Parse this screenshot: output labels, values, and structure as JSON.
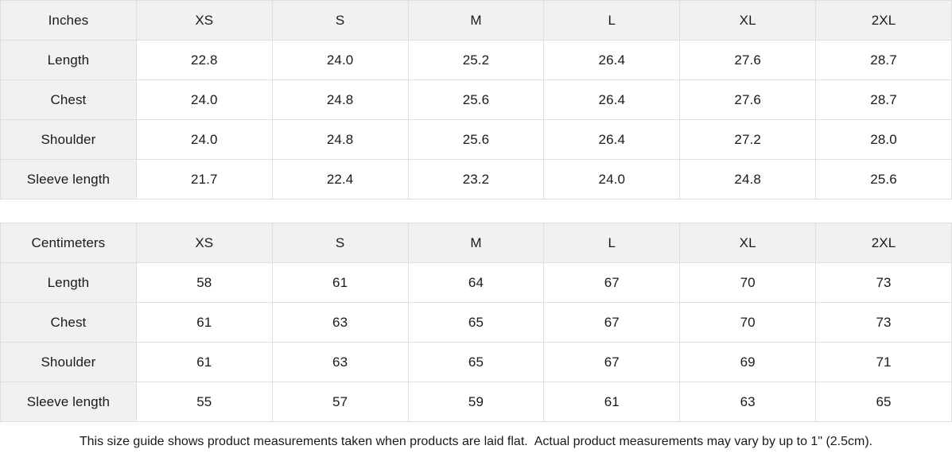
{
  "page": {
    "footer_note": "This size guide shows product measurements taken when products are laid flat.  Actual product measurements may vary by up to 1\" (2.5cm)."
  },
  "colors": {
    "header_bg": "#f1f1f1",
    "border": "#dfdfdf",
    "text": "#1a1a1a"
  },
  "tables": [
    {
      "unit_label": "Inches",
      "sizes": [
        "XS",
        "S",
        "M",
        "L",
        "XL",
        "2XL"
      ],
      "rows": [
        {
          "label": "Length",
          "values": [
            "22.8",
            "24.0",
            "25.2",
            "26.4",
            "27.6",
            "28.7"
          ]
        },
        {
          "label": "Chest",
          "values": [
            "24.0",
            "24.8",
            "25.6",
            "26.4",
            "27.6",
            "28.7"
          ]
        },
        {
          "label": "Shoulder",
          "values": [
            "24.0",
            "24.8",
            "25.6",
            "26.4",
            "27.2",
            "28.0"
          ]
        },
        {
          "label": "Sleeve length",
          "values": [
            "21.7",
            "22.4",
            "23.2",
            "24.0",
            "24.8",
            "25.6"
          ]
        }
      ]
    },
    {
      "unit_label": "Centimeters",
      "sizes": [
        "XS",
        "S",
        "M",
        "L",
        "XL",
        "2XL"
      ],
      "rows": [
        {
          "label": "Length",
          "values": [
            "58",
            "61",
            "64",
            "67",
            "70",
            "73"
          ]
        },
        {
          "label": "Chest",
          "values": [
            "61",
            "63",
            "65",
            "67",
            "70",
            "73"
          ]
        },
        {
          "label": "Shoulder",
          "values": [
            "61",
            "63",
            "65",
            "67",
            "69",
            "71"
          ]
        },
        {
          "label": "Sleeve length",
          "values": [
            "55",
            "57",
            "59",
            "61",
            "63",
            "65"
          ]
        }
      ]
    }
  ]
}
